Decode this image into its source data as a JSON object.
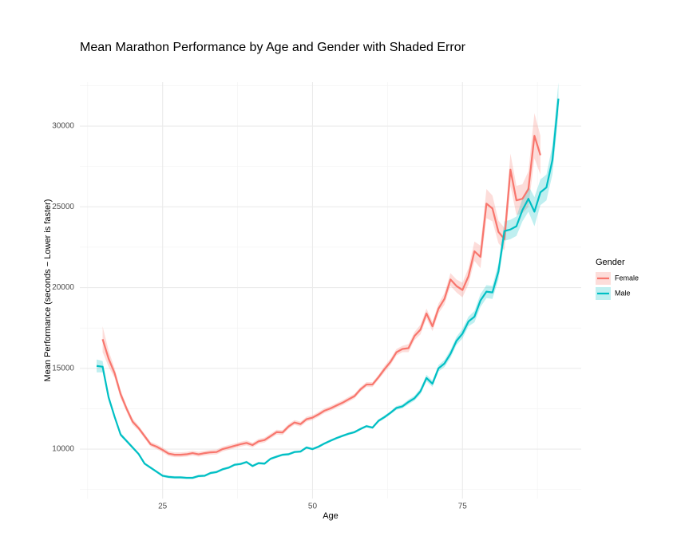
{
  "chart_data": {
    "type": "line",
    "title": "Mean Marathon Performance by Age and Gender with Shaded Error",
    "x_label": "Age",
    "y_label": "Mean Performance (seconds − Lower is faster)",
    "legend_title": "Gender",
    "legend": "right",
    "grid": true,
    "x": [
      14,
      15,
      16,
      17,
      18,
      19,
      20,
      21,
      22,
      23,
      24,
      25,
      26,
      27,
      28,
      29,
      30,
      31,
      32,
      33,
      34,
      35,
      36,
      37,
      38,
      39,
      40,
      41,
      42,
      43,
      44,
      45,
      46,
      47,
      48,
      49,
      50,
      51,
      52,
      53,
      54,
      55,
      56,
      57,
      58,
      59,
      60,
      61,
      62,
      63,
      64,
      65,
      66,
      67,
      68,
      69,
      70,
      71,
      72,
      73,
      74,
      75,
      76,
      77,
      78,
      79,
      80,
      81,
      82,
      83,
      84,
      85,
      86,
      87,
      88,
      89,
      90,
      91
    ],
    "xlim": [
      11.2,
      94.8
    ],
    "xticks": [
      25,
      50,
      75
    ],
    "ylim": [
      6940,
      32720
    ],
    "yticks": [
      10000,
      15000,
      20000,
      25000,
      30000
    ],
    "series": [
      {
        "name": "Female",
        "color": "#F8766D",
        "values": [
          null,
          16800,
          15600,
          14700,
          13400,
          12500,
          11700,
          11300,
          10800,
          10300,
          10150,
          9950,
          9720,
          9650,
          9650,
          9680,
          9750,
          9680,
          9750,
          9800,
          9820,
          10000,
          10100,
          10200,
          10300,
          10380,
          10250,
          10480,
          10560,
          10800,
          11050,
          11030,
          11400,
          11650,
          11550,
          11850,
          11950,
          12150,
          12380,
          12520,
          12700,
          12870,
          13080,
          13280,
          13700,
          14000,
          14000,
          14450,
          14950,
          15400,
          16000,
          16200,
          16250,
          17000,
          17400,
          18400,
          17600,
          18700,
          19300,
          20500,
          20100,
          19850,
          20700,
          22250,
          21900,
          25200,
          24900,
          23450,
          23000,
          27300,
          25400,
          25500,
          26100,
          29400,
          28200,
          null,
          null,
          null
        ],
        "errors": [
          null,
          800,
          500,
          300,
          250,
          200,
          200,
          150,
          150,
          150,
          150,
          150,
          150,
          150,
          150,
          150,
          150,
          150,
          150,
          150,
          150,
          150,
          150,
          150,
          150,
          150,
          150,
          150,
          150,
          150,
          150,
          150,
          150,
          150,
          150,
          150,
          150,
          150,
          150,
          150,
          150,
          150,
          150,
          150,
          150,
          150,
          150,
          150,
          200,
          200,
          200,
          200,
          250,
          250,
          300,
          300,
          300,
          300,
          350,
          400,
          400,
          450,
          500,
          600,
          700,
          900,
          800,
          700,
          700,
          1000,
          900,
          900,
          1100,
          1400,
          1200,
          null,
          null,
          null
        ]
      },
      {
        "name": "Male",
        "color": "#00BFC4",
        "values": [
          15150,
          15100,
          13200,
          12000,
          10900,
          10500,
          10100,
          9700,
          9100,
          8850,
          8600,
          8350,
          8280,
          8250,
          8250,
          8220,
          8220,
          8330,
          8350,
          8520,
          8580,
          8750,
          8850,
          9030,
          9080,
          9200,
          8950,
          9130,
          9100,
          9400,
          9530,
          9650,
          9680,
          9820,
          9850,
          10100,
          10000,
          10150,
          10350,
          10520,
          10680,
          10820,
          10950,
          11050,
          11250,
          11420,
          11330,
          11750,
          11980,
          12250,
          12550,
          12650,
          12920,
          13150,
          13580,
          14400,
          14050,
          15000,
          15300,
          15900,
          16700,
          17150,
          17900,
          18200,
          19200,
          19750,
          19700,
          21000,
          23500,
          23600,
          23800,
          24800,
          25500,
          24700,
          25900,
          26200,
          27900,
          31700
        ],
        "errors": [
          400,
          350,
          200,
          150,
          120,
          100,
          100,
          80,
          80,
          80,
          80,
          80,
          80,
          80,
          80,
          80,
          80,
          80,
          80,
          80,
          80,
          80,
          80,
          80,
          80,
          80,
          80,
          80,
          80,
          80,
          80,
          80,
          80,
          80,
          80,
          80,
          80,
          80,
          80,
          80,
          80,
          80,
          80,
          80,
          80,
          80,
          80,
          100,
          100,
          100,
          120,
          120,
          150,
          150,
          180,
          200,
          200,
          200,
          220,
          250,
          250,
          300,
          300,
          350,
          400,
          400,
          400,
          500,
          600,
          600,
          600,
          700,
          800,
          900,
          800,
          800,
          900,
          1000
        ]
      }
    ]
  }
}
